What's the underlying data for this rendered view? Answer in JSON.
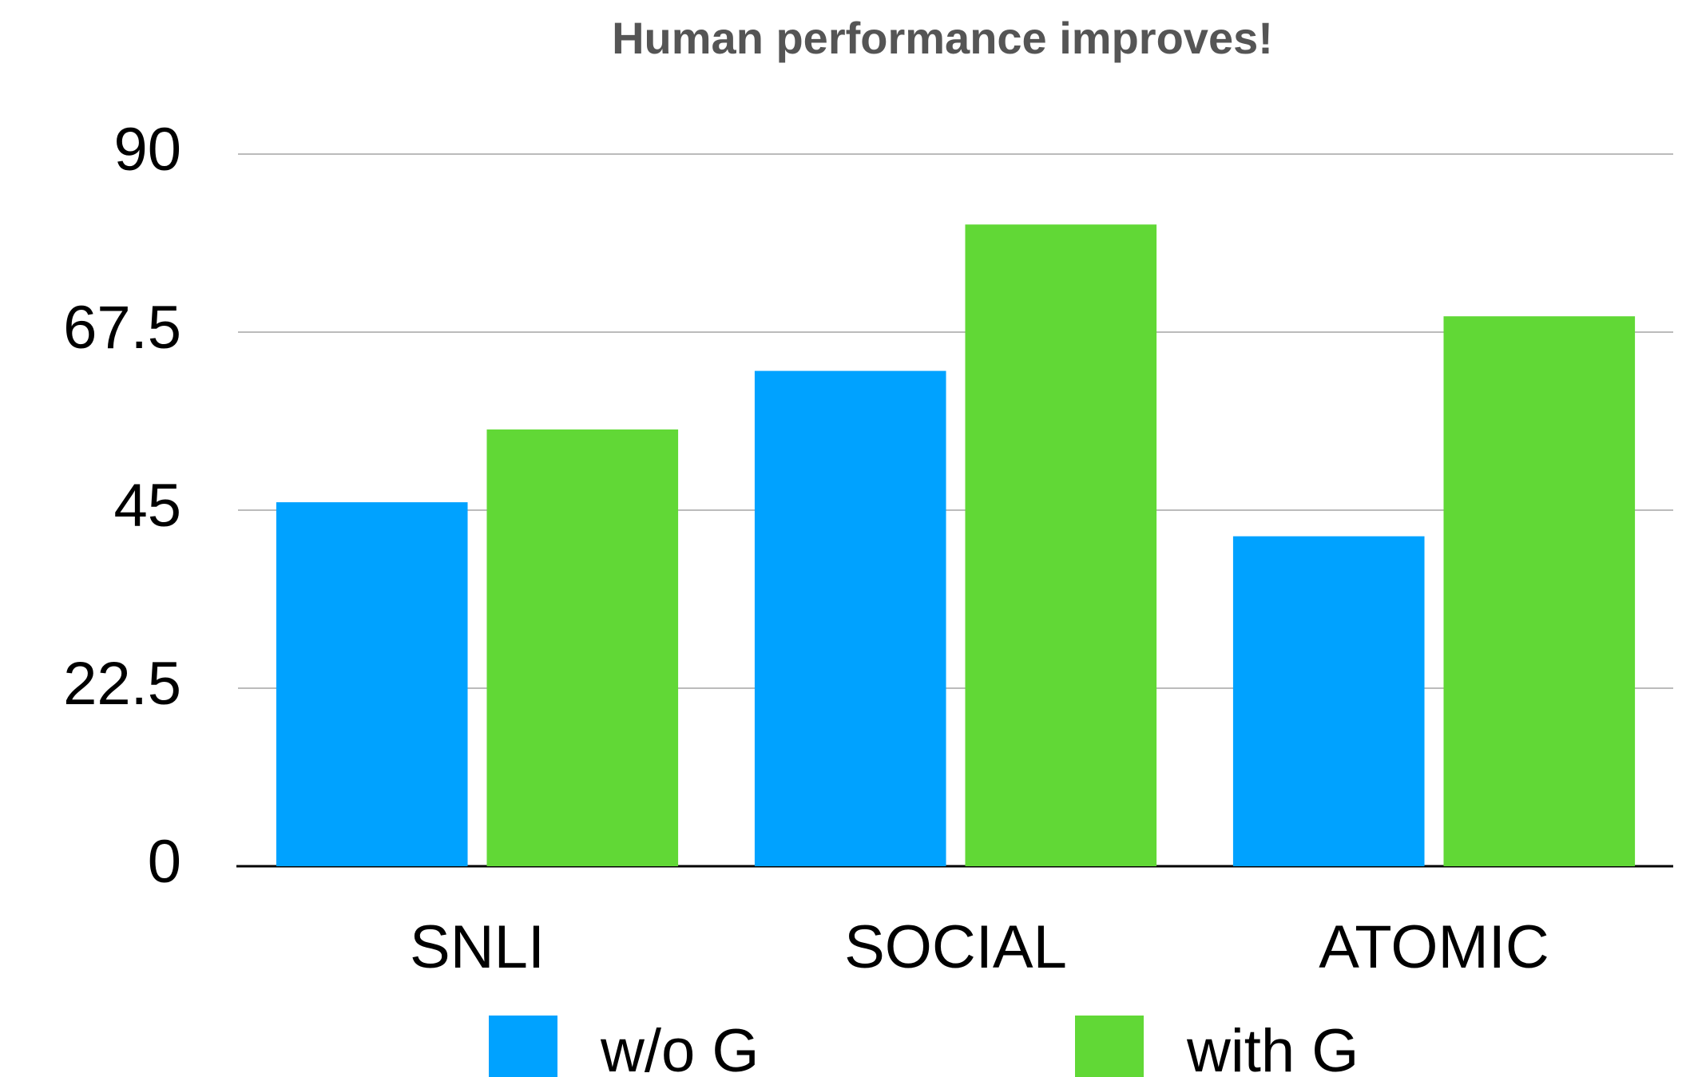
{
  "chart_data": {
    "type": "bar",
    "title": "Human performance improves!",
    "categories": [
      "SNLI",
      "SOCIAL",
      "ATOMIC"
    ],
    "series": [
      {
        "name": "w/o G",
        "color": "#00a2ff",
        "values": [
          46.0,
          62.6,
          41.7
        ]
      },
      {
        "name": "with G",
        "color": "#61d836",
        "values": [
          55.2,
          81.1,
          69.5
        ]
      }
    ],
    "ylim": [
      0,
      90
    ],
    "yticks": [
      0,
      22.5,
      45,
      67.5,
      90
    ],
    "grid": true,
    "legend": "bottom"
  }
}
